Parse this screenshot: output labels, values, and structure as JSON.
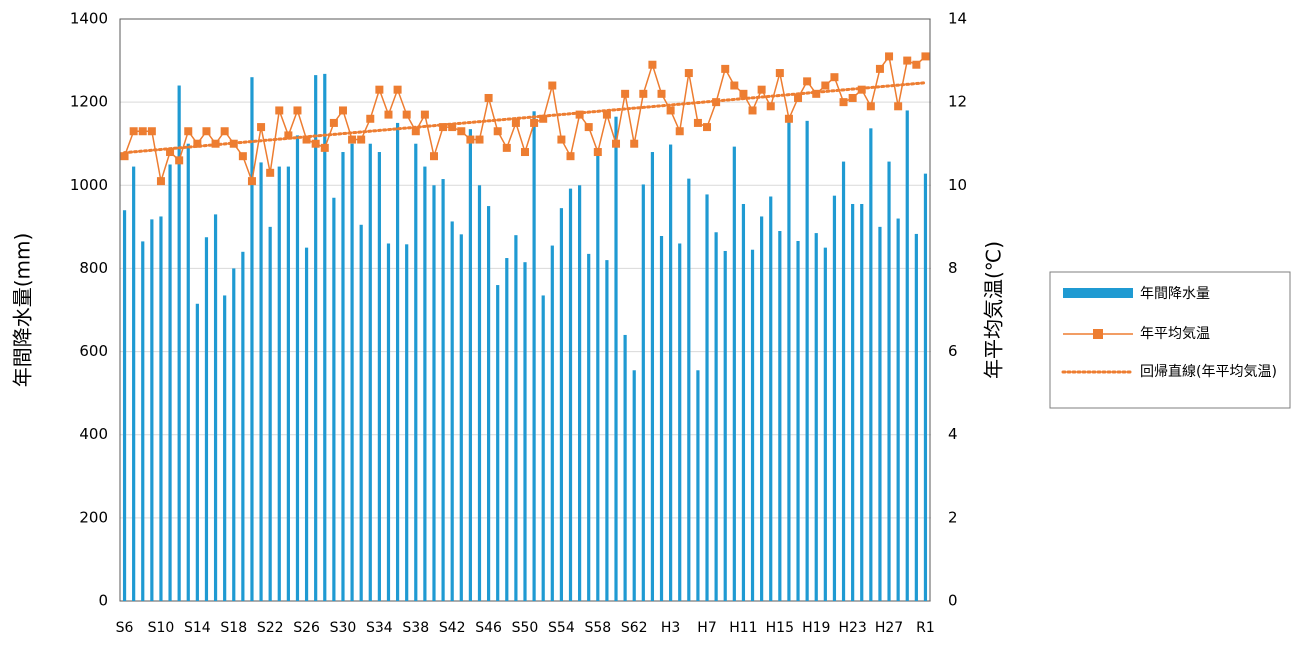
{
  "chart_data": {
    "type": "bar-line",
    "categories": [
      "S6",
      null,
      null,
      null,
      "S10",
      null,
      null,
      null,
      "S14",
      null,
      null,
      null,
      "S18",
      null,
      null,
      null,
      "S22",
      null,
      null,
      null,
      "S26",
      null,
      null,
      null,
      "S30",
      null,
      null,
      null,
      "S34",
      null,
      null,
      null,
      "S38",
      null,
      null,
      null,
      "S42",
      null,
      null,
      null,
      "S46",
      null,
      null,
      null,
      "S50",
      null,
      null,
      null,
      "S54",
      null,
      null,
      null,
      "S58",
      null,
      null,
      null,
      "S62",
      null,
      null,
      null,
      "H3",
      null,
      null,
      null,
      "H7",
      null,
      null,
      null,
      "H11",
      null,
      null,
      null,
      "H15",
      null,
      null,
      null,
      "H19",
      null,
      null,
      null,
      "H23",
      null,
      null,
      null,
      "H27",
      null,
      null,
      null,
      "R1"
    ],
    "ylabel": "年間降水量(mm)",
    "y2label": "年平均気温(℃)",
    "ylim": [
      0,
      1400
    ],
    "yticks": [
      0,
      200,
      400,
      600,
      800,
      1000,
      1200,
      1400
    ],
    "y2lim": [
      0,
      14
    ],
    "y2ticks": [
      0,
      2,
      4,
      6,
      8,
      10,
      12,
      14
    ],
    "grid": true,
    "legend": "right",
    "series": [
      {
        "name": "年間降水量",
        "type": "bar",
        "color": "#1f9ad2",
        "values": [
          940,
          1045,
          865,
          918,
          925,
          1050,
          1240,
          1100,
          715,
          875,
          930,
          735,
          800,
          840,
          1260,
          1055,
          900,
          1045,
          1045,
          1120,
          850,
          1265,
          1268,
          970,
          1080,
          1100,
          905,
          1100,
          1080,
          860,
          1150,
          858,
          1100,
          1045,
          1000,
          1015,
          913,
          882,
          1135,
          1000,
          950,
          760,
          825,
          880,
          815,
          1178,
          735,
          855,
          945,
          992,
          1000,
          835,
          1090,
          820,
          1165,
          640,
          555,
          1002,
          1080,
          878,
          1098,
          860,
          1016,
          555,
          978,
          887,
          842,
          1093,
          955,
          845,
          925,
          973,
          890,
          1165,
          866,
          1155,
          885,
          850,
          975,
          1057,
          955,
          955,
          1137,
          900,
          1057,
          920,
          1180,
          883,
          1028
        ]
      },
      {
        "name": "年平均気温",
        "type": "line",
        "axis": "y2",
        "color": "#ed7d31",
        "values": [
          10.7,
          11.3,
          11.3,
          11.3,
          10.1,
          10.8,
          10.6,
          11.3,
          11.0,
          11.3,
          11.0,
          11.3,
          11.0,
          10.7,
          10.1,
          11.4,
          10.3,
          11.8,
          11.2,
          11.8,
          11.1,
          11.0,
          10.9,
          11.5,
          11.8,
          11.1,
          11.1,
          11.6,
          12.3,
          11.7,
          12.3,
          11.7,
          11.3,
          11.7,
          10.7,
          11.4,
          11.4,
          11.3,
          11.1,
          11.1,
          12.1,
          11.3,
          10.9,
          11.5,
          10.8,
          11.5,
          11.6,
          12.4,
          11.1,
          10.7,
          11.7,
          11.4,
          10.8,
          11.7,
          11.0,
          12.2,
          11.0,
          12.2,
          12.9,
          12.2,
          11.8,
          11.3,
          12.7,
          11.5,
          11.4,
          12.0,
          12.8,
          12.4,
          12.2,
          11.8,
          12.3,
          11.9,
          12.7,
          11.6,
          12.1,
          12.5,
          12.2,
          12.4,
          12.6,
          12.0,
          12.1,
          12.3,
          11.9,
          12.8,
          13.1,
          11.9,
          13.0,
          12.9,
          13.1
        ]
      }
    ],
    "trendline": {
      "name": "回帰直線(年平均気温)",
      "of": 1,
      "color": "#ed7d31"
    }
  }
}
